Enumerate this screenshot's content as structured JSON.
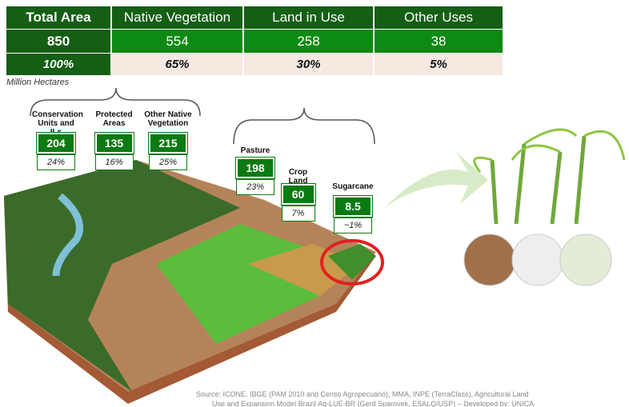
{
  "table": {
    "header": [
      "Total Area",
      "Native Vegetation",
      "Land in Use",
      "Other Uses"
    ],
    "rows": [
      [
        "850",
        "554",
        "258",
        "38"
      ],
      [
        "100%",
        "65%",
        "30%",
        "5%"
      ]
    ],
    "unit": "Million Hectares"
  },
  "boxes": [
    {
      "label": "Conservation Units and ILs",
      "value": "204",
      "share": "24%"
    },
    {
      "label": "Protected Areas",
      "value": "135",
      "share": "16%"
    },
    {
      "label": "Other Native Vegetation",
      "value": "215",
      "share": "25%"
    },
    {
      "label": "Pasture",
      "value": "198",
      "share": "23%"
    },
    {
      "label": "Crop Land",
      "value": "60",
      "share": "7%"
    },
    {
      "label": "Sugarcane",
      "value": "8.5",
      "share": "~1%"
    }
  ],
  "source": [
    "Source: ICONE, IBGE (PAM 2010 and Censo Agropecuário), MMA, INPE (TerraClass), Agricultural Land",
    "Use and Expansion Model Brazil Ag-LUE-BR (Gerd Sparovek, ESALQ/USP) – Developed by: UNICA"
  ]
}
